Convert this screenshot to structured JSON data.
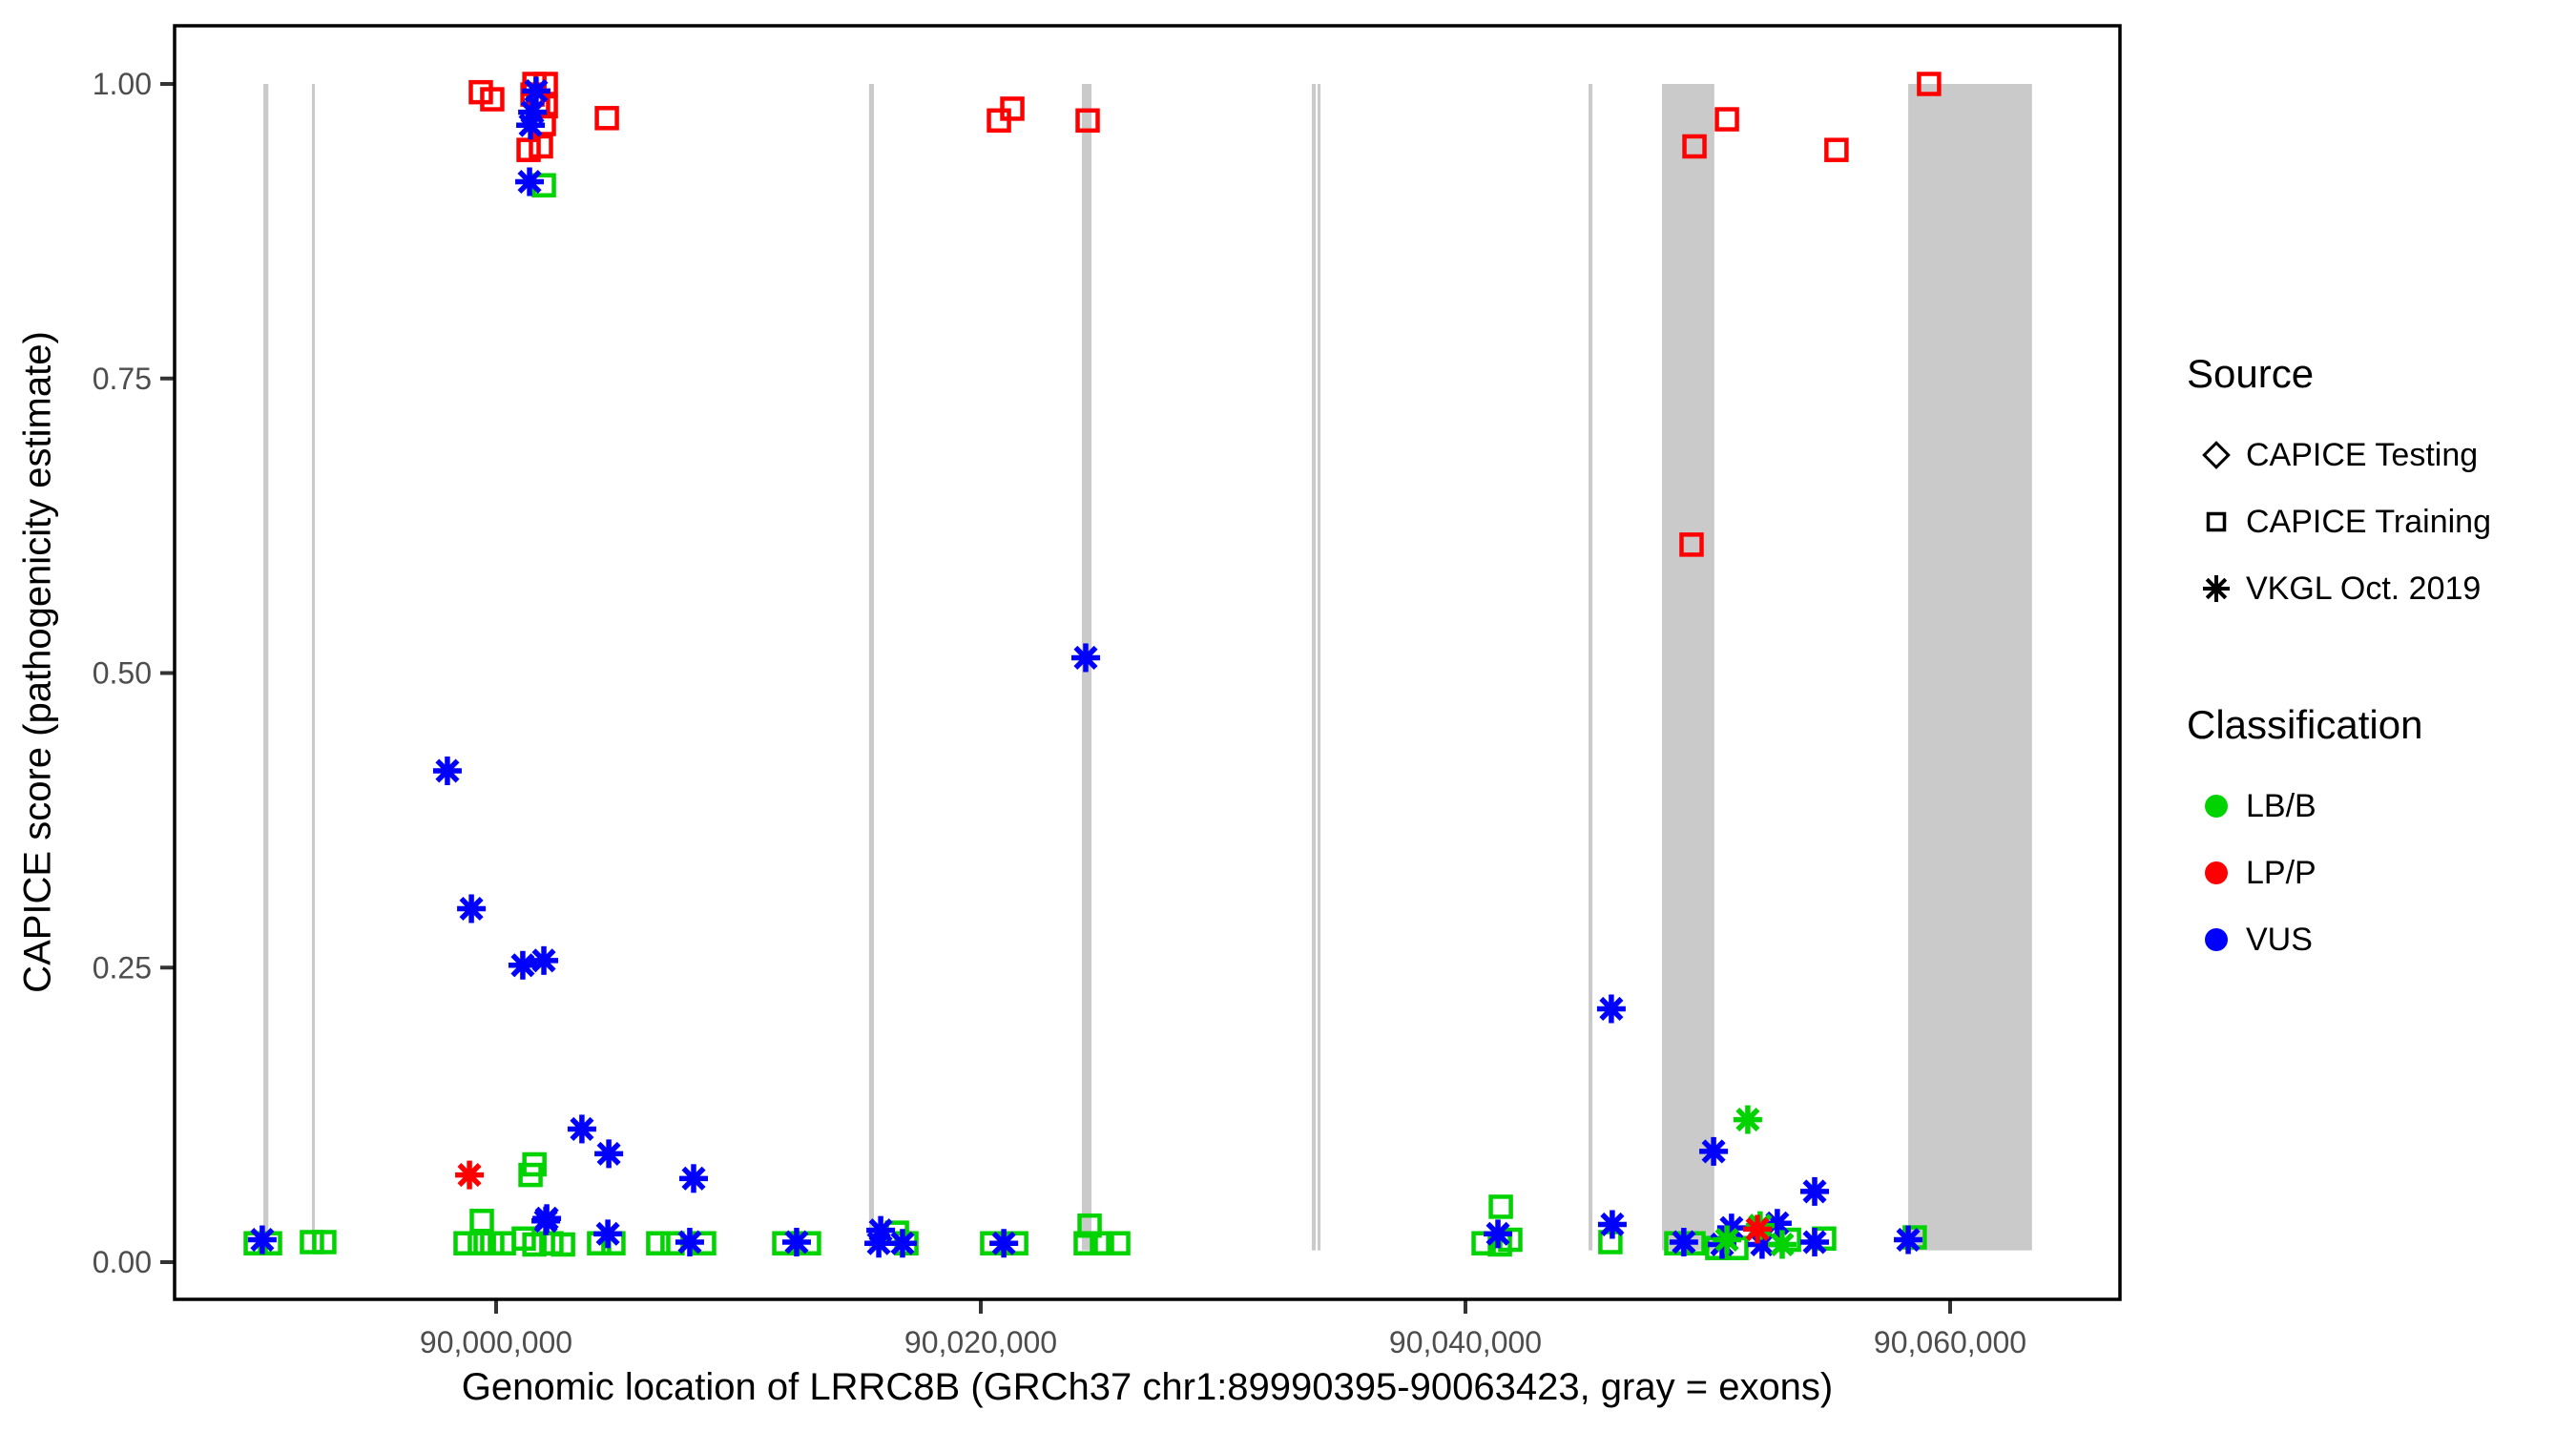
{
  "chart_data": {
    "type": "scatter",
    "title": "",
    "xlabel": "Genomic location of LRRC8B (GRCh37 chr1:89990395-90063423, gray = exons)",
    "ylabel": "CAPICE score (pathogenicity estimate)",
    "xlim": [
      89986730,
      90067010
    ],
    "ylim": [
      -0.032,
      1.049
    ],
    "grid": false,
    "legend_position": "right",
    "x_ticks": [
      {
        "value": 90000000,
        "label": "90,000,000"
      },
      {
        "value": 90020000,
        "label": "90,020,000"
      },
      {
        "value": 90040000,
        "label": "90,040,000"
      },
      {
        "value": 90060000,
        "label": "90,060,000"
      }
    ],
    "y_ticks": [
      {
        "value": 0.0,
        "label": "0.00"
      },
      {
        "value": 0.25,
        "label": "0.25"
      },
      {
        "value": 0.5,
        "label": "0.50"
      },
      {
        "value": 0.75,
        "label": "0.75"
      },
      {
        "value": 1.0,
        "label": "1.00"
      }
    ],
    "exon_color": "#cacaca",
    "exons": [
      [
        89990395,
        89990600
      ],
      [
        89992400,
        89992520
      ],
      [
        90015390,
        90015590
      ],
      [
        90024170,
        90024570
      ],
      [
        90033660,
        90033820
      ],
      [
        90033900,
        90034020
      ],
      [
        90045080,
        90045240
      ],
      [
        90048110,
        90050270
      ],
      [
        90058270,
        90063380
      ]
    ],
    "source_codes": {
      "E": "CAPICE Testing",
      "T": "CAPICE Training",
      "V": "VKGL Oct. 2019"
    },
    "class_codes": {
      "B": "LB/B",
      "P": "LP/P",
      "U": "VUS"
    },
    "shapes": {
      "CAPICE Testing": "diamond",
      "CAPICE Training": "square",
      "VKGL Oct. 2019": "asterisk"
    },
    "colors": {
      "LB/B": "#00d300",
      "LP/P": "#ff0000",
      "VUS": "#0000ff"
    },
    "points": [
      [
        89999370,
        0.993,
        "T",
        "P"
      ],
      [
        89999840,
        0.987,
        "T",
        "P"
      ],
      [
        90001580,
        1.0,
        "T",
        "P"
      ],
      [
        90002050,
        1.0,
        "T",
        "P"
      ],
      [
        90001500,
        0.991,
        "T",
        "P"
      ],
      [
        90001730,
        0.982,
        "T",
        "P"
      ],
      [
        90002050,
        0.981,
        "T",
        "P"
      ],
      [
        90001970,
        0.966,
        "T",
        "P"
      ],
      [
        90004570,
        0.971,
        "T",
        "P"
      ],
      [
        90001340,
        0.944,
        "T",
        "P"
      ],
      [
        90001850,
        0.947,
        "T",
        "P"
      ],
      [
        90020750,
        0.969,
        "T",
        "P"
      ],
      [
        90021300,
        0.979,
        "T",
        "P"
      ],
      [
        90024410,
        0.969,
        "T",
        "P"
      ],
      [
        90049450,
        0.947,
        "T",
        "P"
      ],
      [
        90050790,
        0.97,
        "T",
        "P"
      ],
      [
        90055310,
        0.944,
        "T",
        "P"
      ],
      [
        90059130,
        1.0,
        "T",
        "P"
      ],
      [
        90049330,
        0.609,
        "T",
        "P"
      ],
      [
        90001650,
        0.994,
        "V",
        "U"
      ],
      [
        90001500,
        0.976,
        "V",
        "U"
      ],
      [
        90001420,
        0.965,
        "V",
        "U"
      ],
      [
        90001380,
        0.917,
        "V",
        "U"
      ],
      [
        89997990,
        0.417,
        "V",
        "U"
      ],
      [
        89998980,
        0.3,
        "V",
        "U"
      ],
      [
        90001100,
        0.252,
        "V",
        "U"
      ],
      [
        90001970,
        0.256,
        "V",
        "U"
      ],
      [
        90024330,
        0.513,
        "V",
        "U"
      ],
      [
        90003540,
        0.113,
        "V",
        "U"
      ],
      [
        90004650,
        0.092,
        "V",
        "U"
      ],
      [
        90008150,
        0.071,
        "V",
        "U"
      ],
      [
        90002090,
        0.037,
        "V",
        "U"
      ],
      [
        89990350,
        0.019,
        "V",
        "U"
      ],
      [
        90002050,
        0.035,
        "V",
        "U"
      ],
      [
        90004610,
        0.024,
        "V",
        "U"
      ],
      [
        90007990,
        0.017,
        "V",
        "U"
      ],
      [
        90012400,
        0.017,
        "V",
        "U"
      ],
      [
        90015870,
        0.027,
        "V",
        "U"
      ],
      [
        90015790,
        0.016,
        "V",
        "U"
      ],
      [
        90016770,
        0.016,
        "V",
        "U"
      ],
      [
        90020950,
        0.016,
        "V",
        "U"
      ],
      [
        90041340,
        0.024,
        "V",
        "U"
      ],
      [
        90046060,
        0.032,
        "V",
        "U"
      ],
      [
        90049010,
        0.017,
        "V",
        "U"
      ],
      [
        90050980,
        0.029,
        "V",
        "U"
      ],
      [
        90050590,
        0.015,
        "V",
        "U"
      ],
      [
        90052240,
        0.015,
        "V",
        "U"
      ],
      [
        90052870,
        0.033,
        "V",
        "U"
      ],
      [
        90054410,
        0.017,
        "V",
        "U"
      ],
      [
        90058270,
        0.019,
        "V",
        "U"
      ],
      [
        90046020,
        0.215,
        "V",
        "U"
      ],
      [
        90050240,
        0.094,
        "V",
        "U"
      ],
      [
        90054410,
        0.06,
        "V",
        "U"
      ],
      [
        90001970,
        0.914,
        "T",
        "B"
      ],
      [
        90001580,
        0.083,
        "T",
        "B"
      ],
      [
        90001420,
        0.074,
        "T",
        "B"
      ],
      [
        89990080,
        0.016,
        "T",
        "B"
      ],
      [
        89990670,
        0.016,
        "T",
        "B"
      ],
      [
        89992400,
        0.017,
        "T",
        "B"
      ],
      [
        89992910,
        0.017,
        "T",
        "B"
      ],
      [
        89999410,
        0.035,
        "T",
        "B"
      ],
      [
        89998740,
        0.016,
        "T",
        "B"
      ],
      [
        89999330,
        0.016,
        "T",
        "B"
      ],
      [
        89999840,
        0.016,
        "T",
        "B"
      ],
      [
        90000320,
        0.016,
        "T",
        "B"
      ],
      [
        90001140,
        0.02,
        "T",
        "B"
      ],
      [
        90001580,
        0.015,
        "T",
        "B"
      ],
      [
        90002280,
        0.016,
        "T",
        "B"
      ],
      [
        90002760,
        0.015,
        "T",
        "B"
      ],
      [
        90004250,
        0.016,
        "T",
        "B"
      ],
      [
        90004840,
        0.016,
        "T",
        "B"
      ],
      [
        90006690,
        0.016,
        "T",
        "B"
      ],
      [
        90007280,
        0.016,
        "T",
        "B"
      ],
      [
        90008580,
        0.016,
        "T",
        "B"
      ],
      [
        90011890,
        0.016,
        "T",
        "B"
      ],
      [
        90012910,
        0.016,
        "T",
        "B"
      ],
      [
        90016540,
        0.025,
        "T",
        "B"
      ],
      [
        90016930,
        0.016,
        "T",
        "B"
      ],
      [
        90020470,
        0.016,
        "T",
        "B"
      ],
      [
        90021460,
        0.016,
        "T",
        "B"
      ],
      [
        90024490,
        0.031,
        "T",
        "B"
      ],
      [
        90024330,
        0.016,
        "T",
        "B"
      ],
      [
        90025000,
        0.016,
        "T",
        "B"
      ],
      [
        90025670,
        0.016,
        "T",
        "B"
      ],
      [
        90040750,
        0.016,
        "T",
        "B"
      ],
      [
        90041420,
        0.015,
        "T",
        "B"
      ],
      [
        90041850,
        0.019,
        "T",
        "B"
      ],
      [
        90041460,
        0.047,
        "T",
        "B"
      ],
      [
        90045980,
        0.017,
        "T",
        "B"
      ],
      [
        90048700,
        0.016,
        "T",
        "B"
      ],
      [
        90049410,
        0.016,
        "T",
        "B"
      ],
      [
        90050390,
        0.012,
        "T",
        "B"
      ],
      [
        90051180,
        0.012,
        "T",
        "B"
      ],
      [
        90053350,
        0.019,
        "T",
        "B"
      ],
      [
        90054800,
        0.02,
        "T",
        "B"
      ],
      [
        90058540,
        0.021,
        "T",
        "B"
      ],
      [
        90050790,
        0.019,
        "V",
        "B"
      ],
      [
        90052160,
        0.031,
        "V",
        "B"
      ],
      [
        90053070,
        0.015,
        "V",
        "B"
      ],
      [
        90051650,
        0.121,
        "V",
        "B"
      ],
      [
        89998900,
        0.074,
        "V",
        "P"
      ],
      [
        90052050,
        0.028,
        "V",
        "P"
      ]
    ],
    "legend": {
      "source": {
        "title": "Source",
        "items": [
          {
            "label": "CAPICE Testing",
            "shape": "diamond"
          },
          {
            "label": "CAPICE Training",
            "shape": "square"
          },
          {
            "label": "VKGL Oct. 2019",
            "shape": "asterisk"
          }
        ]
      },
      "classification": {
        "title": "Classification",
        "items": [
          {
            "label": "LB/B",
            "color": "#00d300"
          },
          {
            "label": "LP/P",
            "color": "#ff0000"
          },
          {
            "label": "VUS",
            "color": "#0000ff"
          }
        ]
      }
    }
  }
}
